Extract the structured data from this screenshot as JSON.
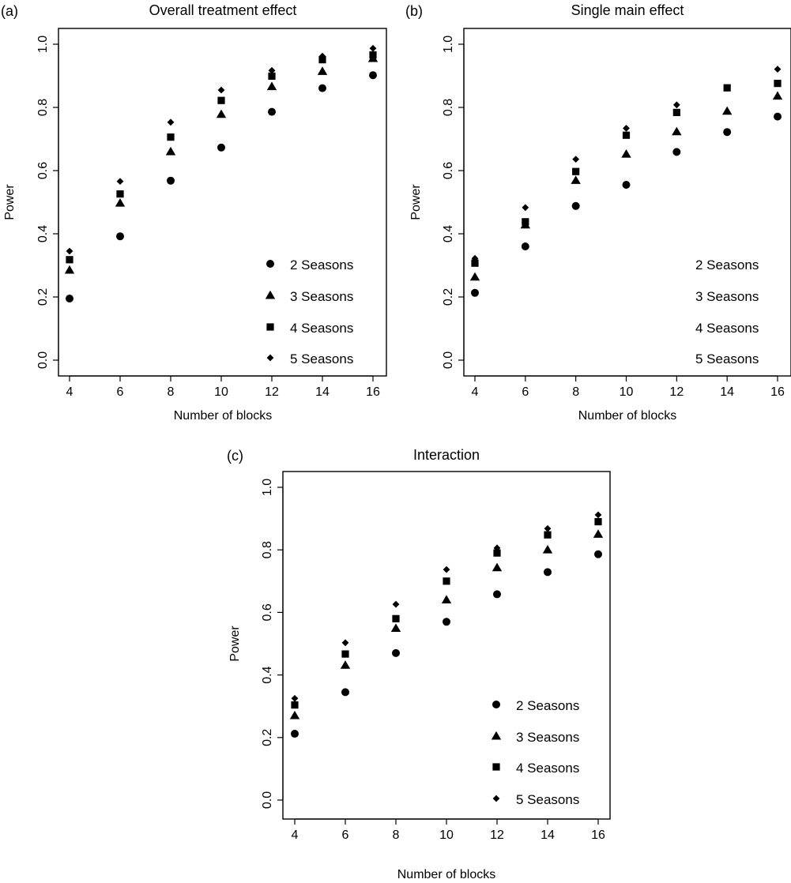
{
  "chart_data": [
    {
      "type": "scatter",
      "panel_label": "(a)",
      "title": "Overall treatment effect",
      "xlabel": "Number of blocks",
      "ylabel": "Power",
      "x": [
        4,
        6,
        8,
        10,
        12,
        14,
        16
      ],
      "xlim": [
        4,
        16
      ],
      "ylim": [
        0,
        1
      ],
      "xticks": [
        "4",
        "6",
        "8",
        "10",
        "12",
        "14",
        "16"
      ],
      "yticks": [
        "0.0",
        "0.2",
        "0.4",
        "0.6",
        "0.8",
        "1.0"
      ],
      "legend_position": "bottom-right",
      "legend_markers_visible": true,
      "series": [
        {
          "name": "2 Seasons",
          "marker": "circle",
          "values": [
            0.195,
            0.392,
            0.568,
            0.673,
            0.786,
            0.861,
            0.902
          ]
        },
        {
          "name": "3 Seasons",
          "marker": "triangle",
          "values": [
            0.285,
            0.497,
            0.66,
            0.778,
            0.866,
            0.914,
            0.955
          ]
        },
        {
          "name": "4 Seasons",
          "marker": "square",
          "values": [
            0.318,
            0.526,
            0.706,
            0.822,
            0.899,
            0.951,
            0.966
          ]
        },
        {
          "name": "5 Seasons",
          "marker": "diamond",
          "values": [
            0.345,
            0.566,
            0.753,
            0.855,
            0.917,
            0.962,
            0.987
          ]
        }
      ]
    },
    {
      "type": "scatter",
      "panel_label": "(b)",
      "title": "Single main effect",
      "xlabel": "Number of blocks",
      "ylabel": "Power",
      "x": [
        4,
        6,
        8,
        10,
        12,
        14,
        16
      ],
      "xlim": [
        4,
        16
      ],
      "ylim": [
        0,
        1
      ],
      "xticks": [
        "4",
        "6",
        "8",
        "10",
        "12",
        "14",
        "16"
      ],
      "yticks": [
        "0.0",
        "0.2",
        "0.4",
        "0.6",
        "0.8",
        "1.0"
      ],
      "legend_position": "bottom-right",
      "legend_markers_visible": false,
      "series": [
        {
          "name": "2 Seasons",
          "marker": "circle",
          "values": [
            0.213,
            0.36,
            0.488,
            0.555,
            0.659,
            0.722,
            0.771
          ]
        },
        {
          "name": "3 Seasons",
          "marker": "triangle",
          "values": [
            0.263,
            0.428,
            0.569,
            0.652,
            0.723,
            0.788,
            0.836
          ]
        },
        {
          "name": "4 Seasons",
          "marker": "square",
          "values": [
            0.307,
            0.438,
            0.597,
            0.712,
            0.784,
            0.862,
            0.876
          ]
        },
        {
          "name": "5 Seasons",
          "marker": "diamond",
          "values": [
            0.322,
            0.483,
            0.636,
            0.734,
            0.808,
            0.862,
            0.921
          ]
        }
      ]
    },
    {
      "type": "scatter",
      "panel_label": "(c)",
      "title": "Interaction",
      "xlabel": "Number of blocks",
      "ylabel": "Power",
      "x": [
        4,
        6,
        8,
        10,
        12,
        14,
        16
      ],
      "xlim": [
        4,
        16
      ],
      "ylim": [
        0,
        1
      ],
      "xticks": [
        "4",
        "6",
        "8",
        "10",
        "12",
        "14",
        "16"
      ],
      "yticks": [
        "0.0",
        "0.2",
        "0.4",
        "0.6",
        "0.8",
        "1.0"
      ],
      "legend_position": "bottom-right",
      "legend_markers_visible": true,
      "series": [
        {
          "name": "2 Seasons",
          "marker": "circle",
          "values": [
            0.212,
            0.345,
            0.47,
            0.57,
            0.658,
            0.729,
            0.786
          ]
        },
        {
          "name": "3 Seasons",
          "marker": "triangle",
          "values": [
            0.27,
            0.431,
            0.549,
            0.64,
            0.743,
            0.8,
            0.85
          ]
        },
        {
          "name": "4 Seasons",
          "marker": "square",
          "values": [
            0.304,
            0.467,
            0.58,
            0.7,
            0.79,
            0.848,
            0.89
          ]
        },
        {
          "name": "5 Seasons",
          "marker": "diamond",
          "values": [
            0.325,
            0.503,
            0.626,
            0.737,
            0.806,
            0.868,
            0.912
          ]
        }
      ]
    }
  ]
}
